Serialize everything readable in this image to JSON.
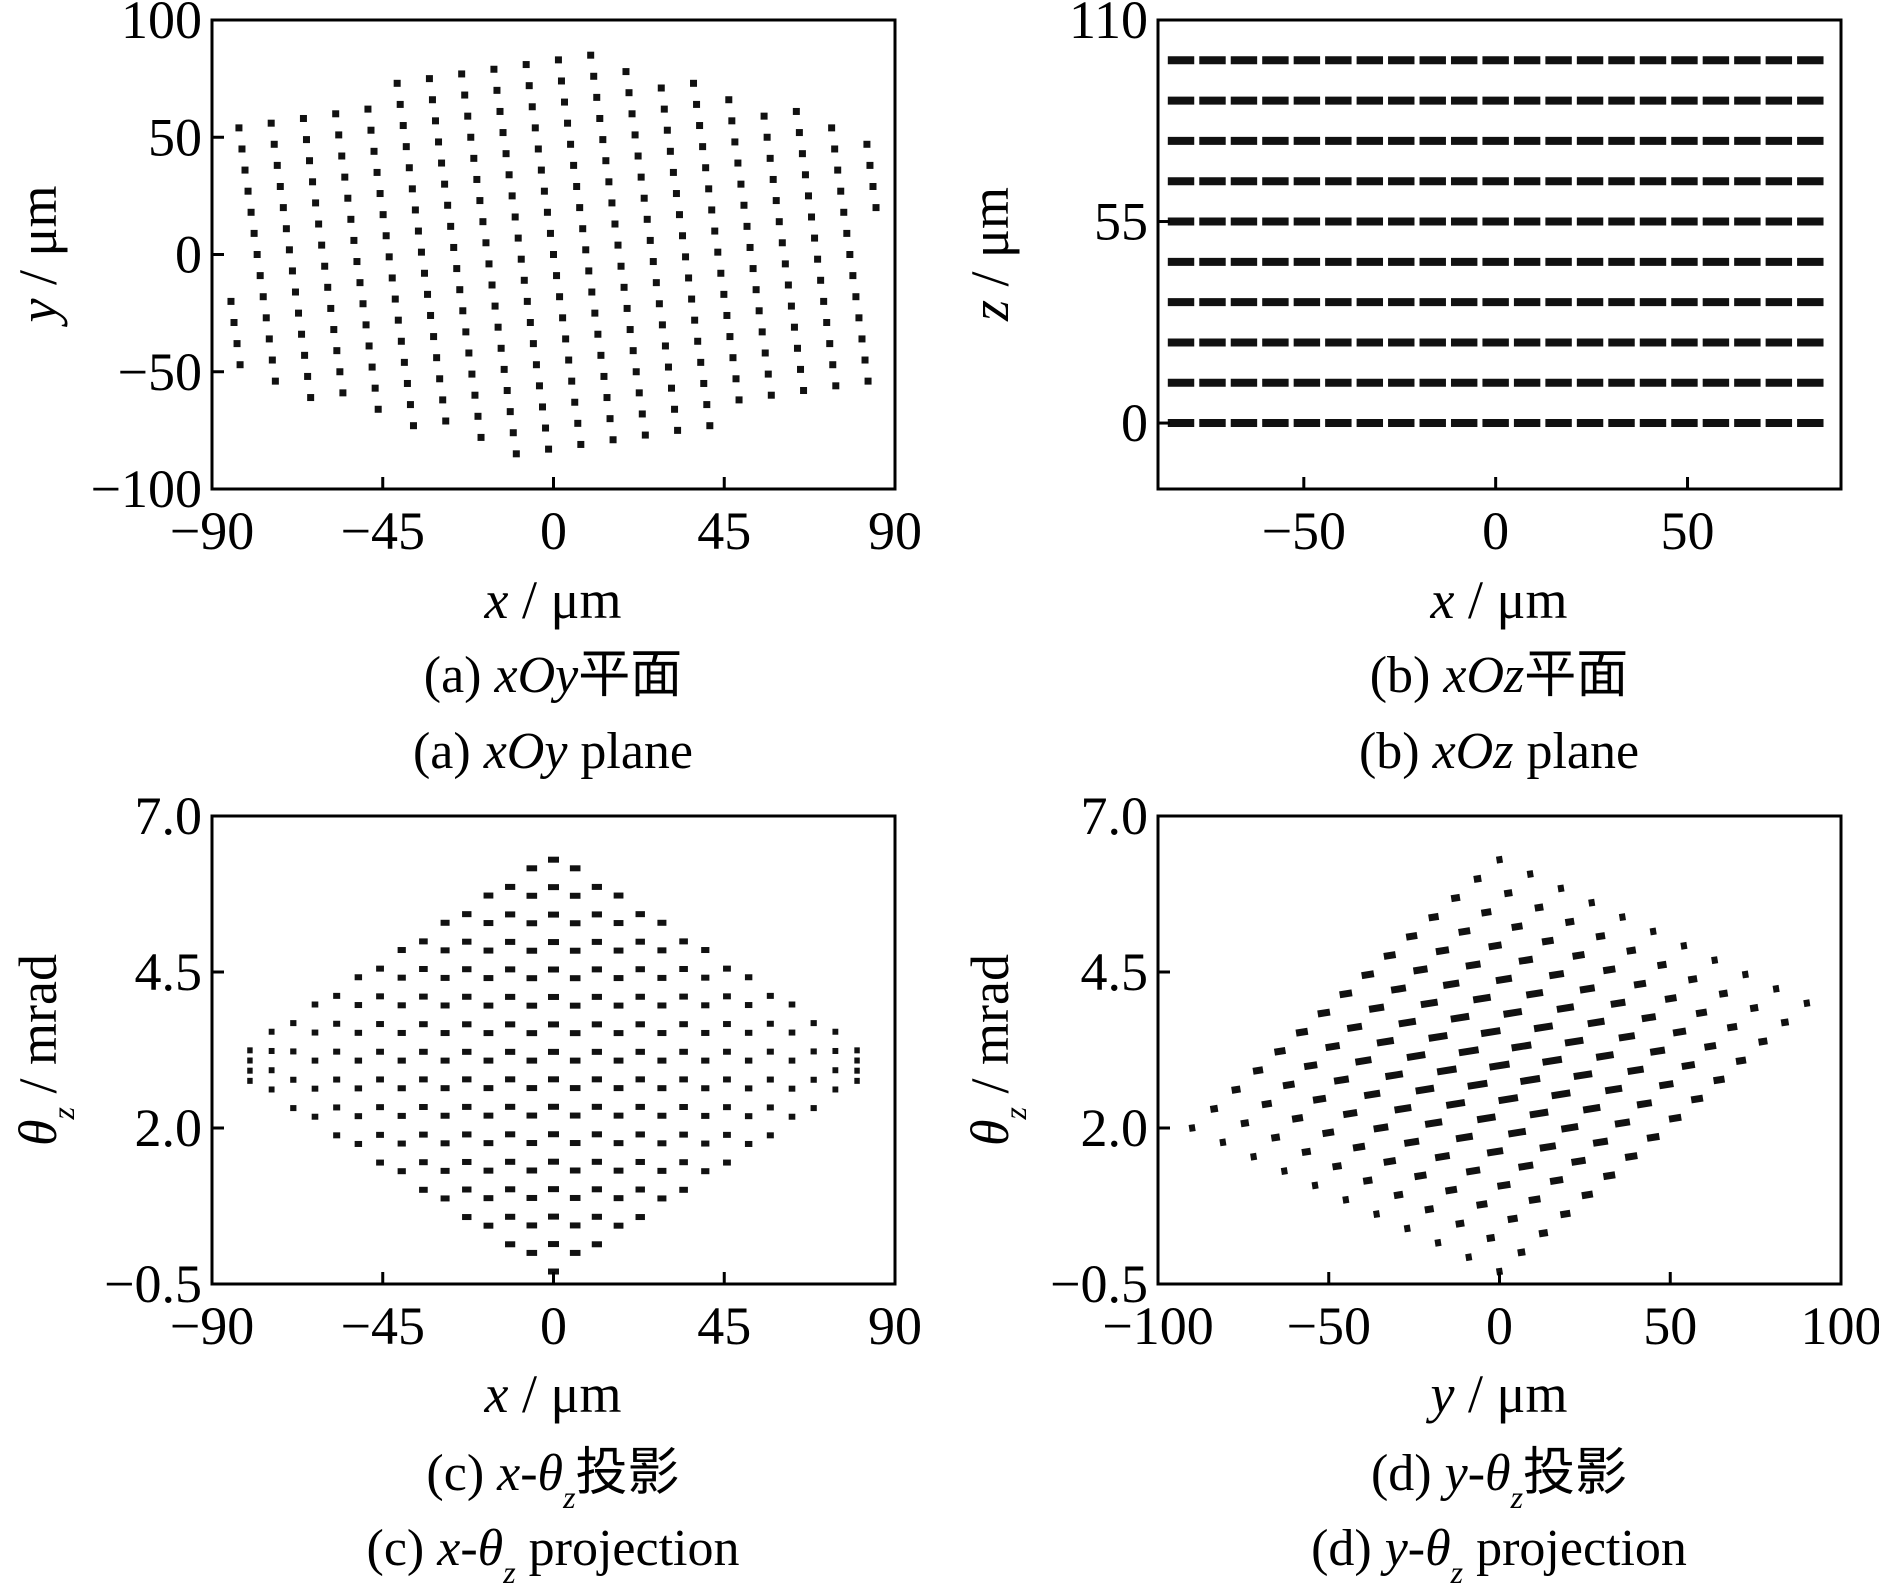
{
  "chart_data": [
    {
      "id": "a",
      "type": "scatter",
      "pattern": "hexagonal lattice of dots",
      "xlabel": {
        "var": "x",
        "unit": " / μm"
      },
      "ylabel": {
        "var": "y",
        "unit": " / μm"
      },
      "xlim": [
        -90,
        90
      ],
      "ylim": [
        -100,
        100
      ],
      "xticks": [
        "−90",
        "−45",
        "0",
        "45",
        "90"
      ],
      "xtick_values": [
        -90,
        -45,
        0,
        45,
        90
      ],
      "yticks": [
        "−100",
        "−50",
        "0",
        "50",
        "100"
      ],
      "ytick_values": [
        -100,
        -50,
        0,
        50,
        100
      ],
      "lattice": {
        "rows": 21,
        "cols": 21,
        "row_step_x": 8.5,
        "row_step_y": 2.0,
        "col_step_x": -0.8,
        "col_step_y": 9.0,
        "center": [
          0,
          0
        ],
        "hex_half_width_x": 85,
        "slant": 0.52,
        "y_span": 92
      },
      "caption_cn": {
        "prefix": "(a) ",
        "italic": "xOy",
        "suffix": "平面"
      },
      "caption_en": {
        "prefix": "(a) ",
        "italic": "xOy",
        "suffix": " plane"
      }
    },
    {
      "id": "b",
      "type": "scatter",
      "pattern": "horizontal rows of dash segments",
      "xlabel": {
        "var": "x",
        "unit": " / μm"
      },
      "ylabel": {
        "var": "z",
        "unit": " / μm"
      },
      "xlim": [
        -88,
        90
      ],
      "ylim": [
        -18,
        110
      ],
      "xticks": [
        "−50",
        "0",
        "50"
      ],
      "xtick_values": [
        -50,
        0,
        50
      ],
      "yticks": [
        "0",
        "55",
        "110"
      ],
      "ytick_values": [
        0,
        55,
        110
      ],
      "z_levels": [
        0,
        11,
        22,
        33,
        44,
        55,
        66,
        77,
        88,
        99
      ],
      "x_extent": [
        -82,
        82
      ],
      "dashes_per_row": 21,
      "caption_cn": {
        "prefix": "(b) ",
        "italic": "xOz",
        "suffix": "平面"
      },
      "caption_en": {
        "prefix": "(b) ",
        "italic": "xOz",
        "suffix": " plane"
      }
    },
    {
      "id": "c",
      "type": "scatter",
      "pattern": "diamond lattice of dash segments",
      "xlabel": {
        "var": "x",
        "unit": " / μm"
      },
      "ylabel": {
        "var": "θ",
        "sub": "z",
        "unit": " / mrad"
      },
      "xlim": [
        -90,
        90
      ],
      "ylim": [
        -0.5,
        7.0
      ],
      "xticks": [
        "−90",
        "−45",
        "0",
        "45",
        "90"
      ],
      "xtick_values": [
        -90,
        -45,
        0,
        45,
        90
      ],
      "yticks": [
        "−0.5",
        "2.0",
        "4.5",
        "7.0"
      ],
      "ytick_values": [
        -0.5,
        2.0,
        4.5,
        7.0
      ],
      "center": [
        0,
        3.0
      ],
      "x_half_width": 80,
      "theta_half_span": 3.3,
      "columns": 29,
      "caption_cn": {
        "prefix": "(c)  ",
        "var": "x-θ",
        "sub": "z",
        "suffix": "投影"
      },
      "caption_en": {
        "prefix": "(c)  ",
        "var": "x-θ",
        "sub": "z",
        "suffix": " projection"
      }
    },
    {
      "id": "d",
      "type": "scatter",
      "pattern": "parallelogram lattice of dash segments",
      "xlabel": {
        "var": "y",
        "unit": " / μm"
      },
      "ylabel": {
        "var": "θ",
        "sub": "z",
        "unit": " / mrad"
      },
      "xlim": [
        -100,
        100
      ],
      "ylim": [
        -0.5,
        7.0
      ],
      "xticks": [
        "−100",
        "−50",
        "0",
        "50",
        "100"
      ],
      "xtick_values": [
        -100,
        -50,
        0,
        50,
        100
      ],
      "yticks": [
        "−0.5",
        "2.0",
        "4.5",
        "7.0"
      ],
      "ytick_values": [
        -0.5,
        2.0,
        4.5,
        7.0
      ],
      "corners": [
        [
          -90,
          2.0
        ],
        [
          0,
          6.3
        ],
        [
          90,
          4.0
        ],
        [
          0,
          -0.3
        ]
      ],
      "rows": 11,
      "cols": 15,
      "caption_cn": {
        "prefix": "(d)  ",
        "var": "y-θ",
        "sub": "z",
        "suffix": "投影"
      },
      "caption_en": {
        "prefix": "(d)  ",
        "var": "y-θ",
        "sub": "z",
        "suffix": " projection"
      }
    }
  ]
}
